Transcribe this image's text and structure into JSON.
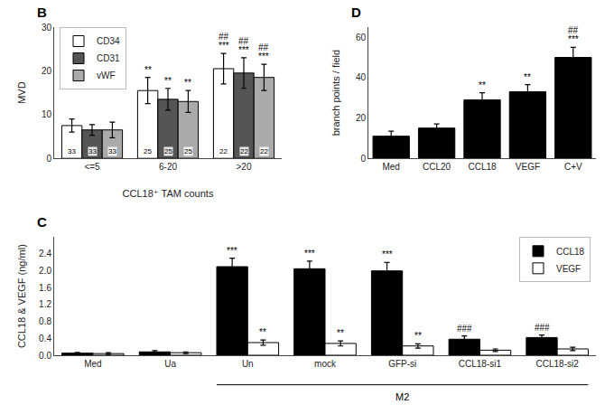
{
  "chart_data": [
    {
      "type": "bar",
      "title": "B",
      "categories": [
        "<=5",
        "6-20",
        ">20"
      ],
      "series": [
        {
          "name": "CD34",
          "color": "white",
          "values": [
            7.5,
            15.5,
            20.5
          ],
          "errors": [
            1.5,
            3.0,
            3.5
          ],
          "counts": [
            33,
            25,
            22
          ]
        },
        {
          "name": "CD31",
          "color": "#555555",
          "values": [
            6.5,
            13.5,
            19.5
          ],
          "errors": [
            1.2,
            2.5,
            3.5
          ],
          "counts": [
            33,
            25,
            22
          ]
        },
        {
          "name": "vWF",
          "color": "#aaaaaa",
          "values": [
            6.5,
            13.0,
            18.5
          ],
          "errors": [
            1.8,
            2.5,
            3.0
          ],
          "counts": [
            33,
            25,
            22
          ]
        }
      ],
      "xlabel": "CCL18⁺ TAM counts",
      "ylabel": "MVD",
      "ylim": [
        0,
        30
      ],
      "yticks": [
        0,
        10,
        20,
        30
      ],
      "grid": false,
      "legend": "upper left",
      "annotations": [
        {
          "text": "**",
          "category": "6-20",
          "series": "CD34"
        },
        {
          "text": "**",
          "category": "6-20",
          "series": "CD31"
        },
        {
          "text": "**",
          "category": "6-20",
          "series": "vWF"
        },
        {
          "text": "***",
          "category": ">20",
          "series": "CD34"
        },
        {
          "text": "##",
          "category": ">20",
          "series": "CD34"
        },
        {
          "text": "***",
          "category": ">20",
          "series": "CD31"
        },
        {
          "text": "##",
          "category": ">20",
          "series": "CD31"
        },
        {
          "text": "***",
          "category": ">20",
          "series": "vWF"
        },
        {
          "text": "##",
          "category": ">20",
          "series": "vWF"
        }
      ]
    },
    {
      "type": "bar",
      "title": "C",
      "categories": [
        "Med",
        "Ua",
        "Un",
        "mock",
        "GFP-si",
        "CCL18-si1",
        "CCL18-si2"
      ],
      "series": [
        {
          "name": "CCL18",
          "color": "black",
          "values": [
            0.05,
            0.08,
            2.1,
            2.05,
            2.0,
            0.38,
            0.42
          ],
          "errors": [
            0.02,
            0.03,
            0.2,
            0.18,
            0.2,
            0.08,
            0.06
          ]
        },
        {
          "name": "VEGF",
          "color": "white",
          "values": [
            0.04,
            0.06,
            0.3,
            0.28,
            0.22,
            0.12,
            0.15
          ],
          "errors": [
            0.02,
            0.02,
            0.06,
            0.06,
            0.05,
            0.03,
            0.04
          ]
        }
      ],
      "ylabel": "CCL18 & VEGF (ng/ml)",
      "ylim": [
        0,
        2.8
      ],
      "yticks": [
        {
          "value": 0.0,
          "label": "0.0"
        },
        0.4,
        0.8,
        1.2,
        1.6,
        {
          "value": 2.0,
          "label": "2.0"
        },
        2.4
      ],
      "grid": false,
      "legend": "upper right",
      "annotations": [
        {
          "text": "***",
          "category": "Un",
          "series": "CCL18"
        },
        {
          "text": "***",
          "category": "mock",
          "series": "CCL18"
        },
        {
          "text": "***",
          "category": "GFP-si",
          "series": "CCL18"
        },
        {
          "text": "###",
          "category": "CCL18-si1",
          "series": "CCL18"
        },
        {
          "text": "###",
          "category": "CCL18-si2",
          "series": "CCL18"
        },
        {
          "text": "**",
          "category": "Un",
          "series": "VEGF"
        },
        {
          "text": "**",
          "category": "mock",
          "series": "VEGF"
        },
        {
          "text": "**",
          "category": "GFP-si",
          "series": "VEGF"
        },
        {
          "text": "M2",
          "categories": [
            "Un",
            "CCL18-si2"
          ]
        }
      ]
    },
    {
      "type": "bar",
      "title": "D",
      "categories": [
        "Med",
        "CCL20",
        "CCL18",
        "VEGF",
        "C+V"
      ],
      "values": [
        11.0,
        15.0,
        29.0,
        33.0,
        50.0
      ],
      "errors": [
        2.5,
        2.0,
        3.5,
        3.5,
        5.0
      ],
      "color": "black",
      "ylabel": "branch points / field",
      "ylim": [
        0,
        65
      ],
      "yticks": [
        0,
        20,
        40,
        60
      ],
      "grid": false,
      "annotations": [
        {
          "text": "**",
          "category": "CCL18"
        },
        {
          "text": "**",
          "category": "VEGF"
        },
        {
          "text": "***",
          "category": "C+V"
        },
        {
          "text": "##",
          "category": "C+V"
        }
      ]
    }
  ]
}
